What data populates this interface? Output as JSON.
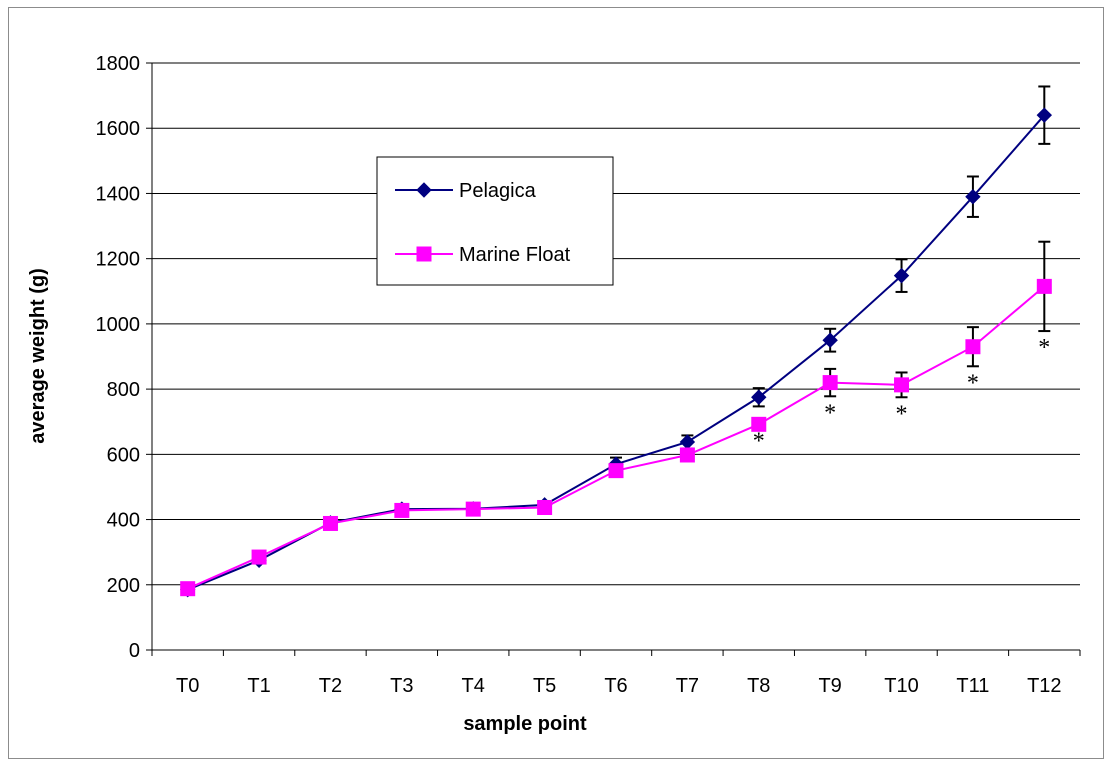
{
  "chart_data": {
    "type": "line",
    "title": "",
    "xlabel": "sample point",
    "ylabel": "average weight (g)",
    "categories": [
      "T0",
      "T1",
      "T2",
      "T3",
      "T4",
      "T5",
      "T6",
      "T7",
      "T8",
      "T9",
      "T10",
      "T11",
      "T12"
    ],
    "ylim": [
      0,
      1800
    ],
    "yticks": [
      0,
      200,
      400,
      600,
      800,
      1000,
      1200,
      1400,
      1600,
      1800
    ],
    "grid": "horizontal",
    "legend_position": "upper-left",
    "series": [
      {
        "name": "Pelagica",
        "color": "#000080",
        "marker": "diamond",
        "values": [
          185,
          275,
          390,
          432,
          433,
          445,
          570,
          638,
          775,
          950,
          1148,
          1390,
          1640
        ],
        "error": [
          0,
          0,
          0,
          0,
          0,
          0,
          20,
          20,
          28,
          35,
          50,
          62,
          88
        ]
      },
      {
        "name": "Marine Float",
        "color": "#ff00ff",
        "marker": "square",
        "values": [
          188,
          285,
          388,
          428,
          432,
          437,
          550,
          598,
          692,
          820,
          813,
          930,
          1115
        ],
        "error": [
          0,
          0,
          0,
          0,
          0,
          0,
          0,
          0,
          0,
          42,
          38,
          60,
          137
        ]
      }
    ],
    "annotations": [
      {
        "category": "T8",
        "text": "*"
      },
      {
        "category": "T9",
        "text": "*"
      },
      {
        "category": "T10",
        "text": "*"
      },
      {
        "category": "T11",
        "text": "*"
      },
      {
        "category": "T12",
        "text": "*"
      }
    ]
  }
}
